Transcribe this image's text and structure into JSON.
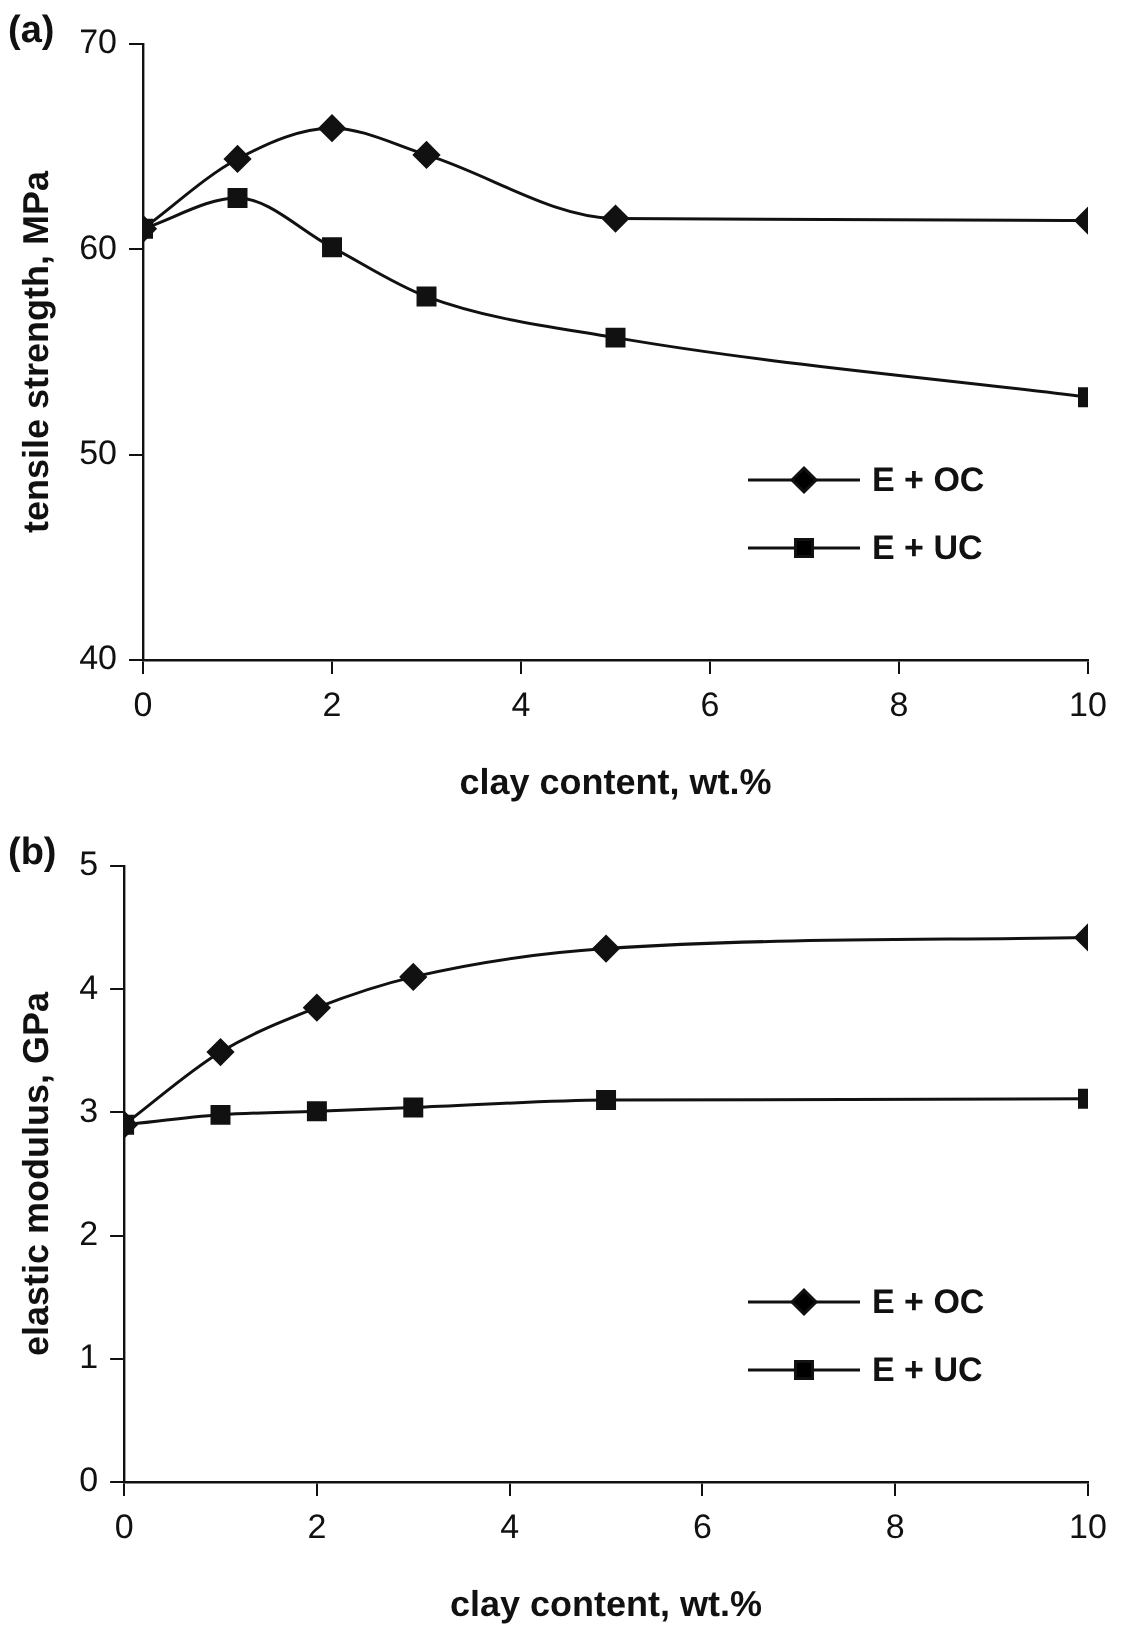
{
  "chart_data": [
    {
      "type": "line",
      "title": "(a)",
      "xlabel": "clay content, wt.%",
      "ylabel": "tensile strength, MPa",
      "x": [
        0,
        1,
        2,
        3,
        5,
        10
      ],
      "xlim": [
        0,
        10
      ],
      "xticks": [
        0,
        2,
        4,
        6,
        8,
        10
      ],
      "ylim": [
        40,
        70
      ],
      "yticks": [
        40,
        50,
        60,
        70
      ],
      "grid": false,
      "legend": "bottom right",
      "line_style": "solid",
      "series": [
        {
          "name": "E + OC",
          "color": "#111111",
          "marker": "diamond",
          "values": [
            61.0,
            64.4,
            65.9,
            64.6,
            61.5,
            61.4
          ]
        },
        {
          "name": "E + UC",
          "color": "#111111",
          "marker": "square",
          "values": [
            61.0,
            62.5,
            60.1,
            57.7,
            55.7,
            52.8
          ]
        }
      ]
    },
    {
      "type": "line",
      "title": "(b)",
      "xlabel": "clay content, wt.%",
      "ylabel": "elastic modulus, GPa",
      "x": [
        0,
        1,
        2,
        3,
        5,
        10
      ],
      "xlim": [
        0,
        10
      ],
      "xticks": [
        0,
        2,
        4,
        6,
        8,
        10
      ],
      "ylim": [
        0,
        5
      ],
      "yticks": [
        0,
        1,
        2,
        3,
        4,
        5
      ],
      "grid": false,
      "legend": "bottom right",
      "line_style": "solid",
      "series": [
        {
          "name": "E + OC",
          "color": "#111111",
          "marker": "diamond",
          "values": [
            2.9,
            3.49,
            3.85,
            4.1,
            4.33,
            4.42
          ]
        },
        {
          "name": "E + UC",
          "color": "#111111",
          "marker": "square",
          "values": [
            2.9,
            2.98,
            3.01,
            3.04,
            3.1,
            3.11
          ]
        }
      ]
    }
  ]
}
